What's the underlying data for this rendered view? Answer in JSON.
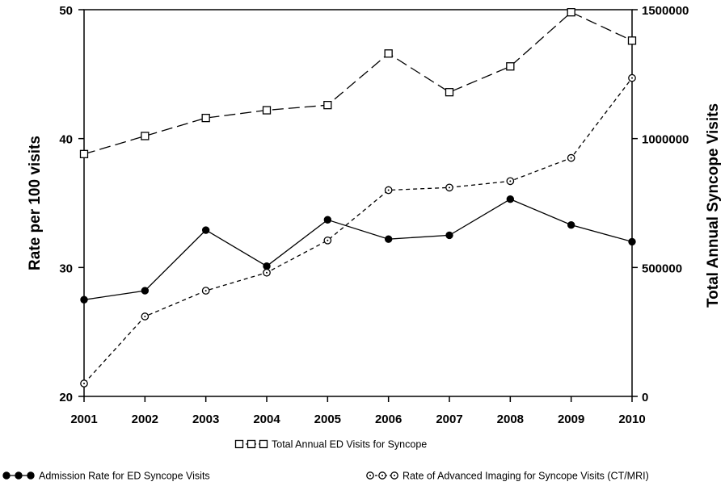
{
  "chart_data": {
    "type": "line",
    "title": "",
    "x": [
      "2001",
      "2002",
      "2003",
      "2004",
      "2005",
      "2006",
      "2007",
      "2008",
      "2009",
      "2010"
    ],
    "ylabel_left": "Rate per 100 visits",
    "ylabel_right": "Total Annual Syncope Visits",
    "ylim_left": [
      20,
      50
    ],
    "yticks_left": [
      "20",
      "30",
      "40",
      "50"
    ],
    "ylim_right": [
      0,
      1500000
    ],
    "yticks_right": [
      "0",
      "500000",
      "1000000",
      "1500000"
    ],
    "grid": false,
    "legend_position": "bottom",
    "series": [
      {
        "name": "Total Annual ED Visits for Syncope",
        "axis": "right",
        "marker": "square",
        "line": "long-dash",
        "values": [
          940000,
          1010000,
          1080000,
          1110000,
          1130000,
          1330000,
          1180000,
          1280000,
          1490000,
          1380000
        ]
      },
      {
        "name": "Admission Rate for ED Syncope Visits",
        "axis": "left",
        "marker": "filled-circle",
        "line": "solid",
        "values": [
          27.5,
          28.2,
          32.9,
          30.1,
          33.7,
          32.2,
          32.5,
          35.3,
          33.3,
          32.0
        ]
      },
      {
        "name": "Rate of Advanced Imaging for Syncope Visits (CT/MRI)",
        "axis": "left",
        "marker": "open-circle-dot",
        "line": "short-dash",
        "values": [
          21.0,
          26.2,
          28.2,
          29.6,
          32.1,
          36.0,
          36.2,
          36.7,
          38.5,
          44.7
        ]
      }
    ]
  }
}
